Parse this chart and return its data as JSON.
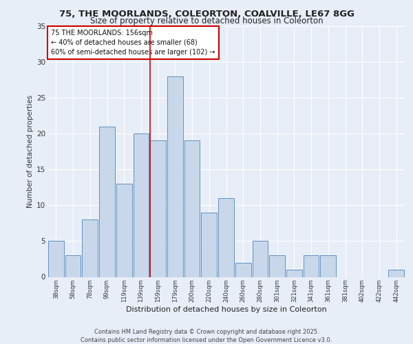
{
  "title_line1": "75, THE MOORLANDS, COLEORTON, COALVILLE, LE67 8GG",
  "title_line2": "Size of property relative to detached houses in Coleorton",
  "xlabel": "Distribution of detached houses by size in Coleorton",
  "ylabel": "Number of detached properties",
  "footer_line1": "Contains HM Land Registry data © Crown copyright and database right 2025.",
  "footer_line2": "Contains public sector information licensed under the Open Government Licence v3.0.",
  "annotation_line1": "75 THE MOORLANDS: 156sqm",
  "annotation_line2": "← 40% of detached houses are smaller (68)",
  "annotation_line3": "60% of semi-detached houses are larger (102) →",
  "bar_labels": [
    "38sqm",
    "58sqm",
    "78sqm",
    "99sqm",
    "119sqm",
    "139sqm",
    "159sqm",
    "179sqm",
    "200sqm",
    "220sqm",
    "240sqm",
    "260sqm",
    "280sqm",
    "301sqm",
    "321sqm",
    "341sqm",
    "361sqm",
    "381sqm",
    "402sqm",
    "422sqm",
    "442sqm"
  ],
  "bar_values": [
    5,
    3,
    8,
    21,
    13,
    20,
    19,
    28,
    19,
    9,
    11,
    2,
    5,
    3,
    1,
    3,
    3,
    0,
    0,
    0,
    1
  ],
  "bar_color": "#c8d8ea",
  "bar_edge_color": "#6090c0",
  "vline_color": "#cc0000",
  "background_color": "#e8eef8",
  "plot_bg_color": "#e8eef8",
  "ylim": [
    0,
    35
  ],
  "yticks": [
    0,
    5,
    10,
    15,
    20,
    25,
    30,
    35
  ],
  "annotation_box_color": "#cc0000"
}
